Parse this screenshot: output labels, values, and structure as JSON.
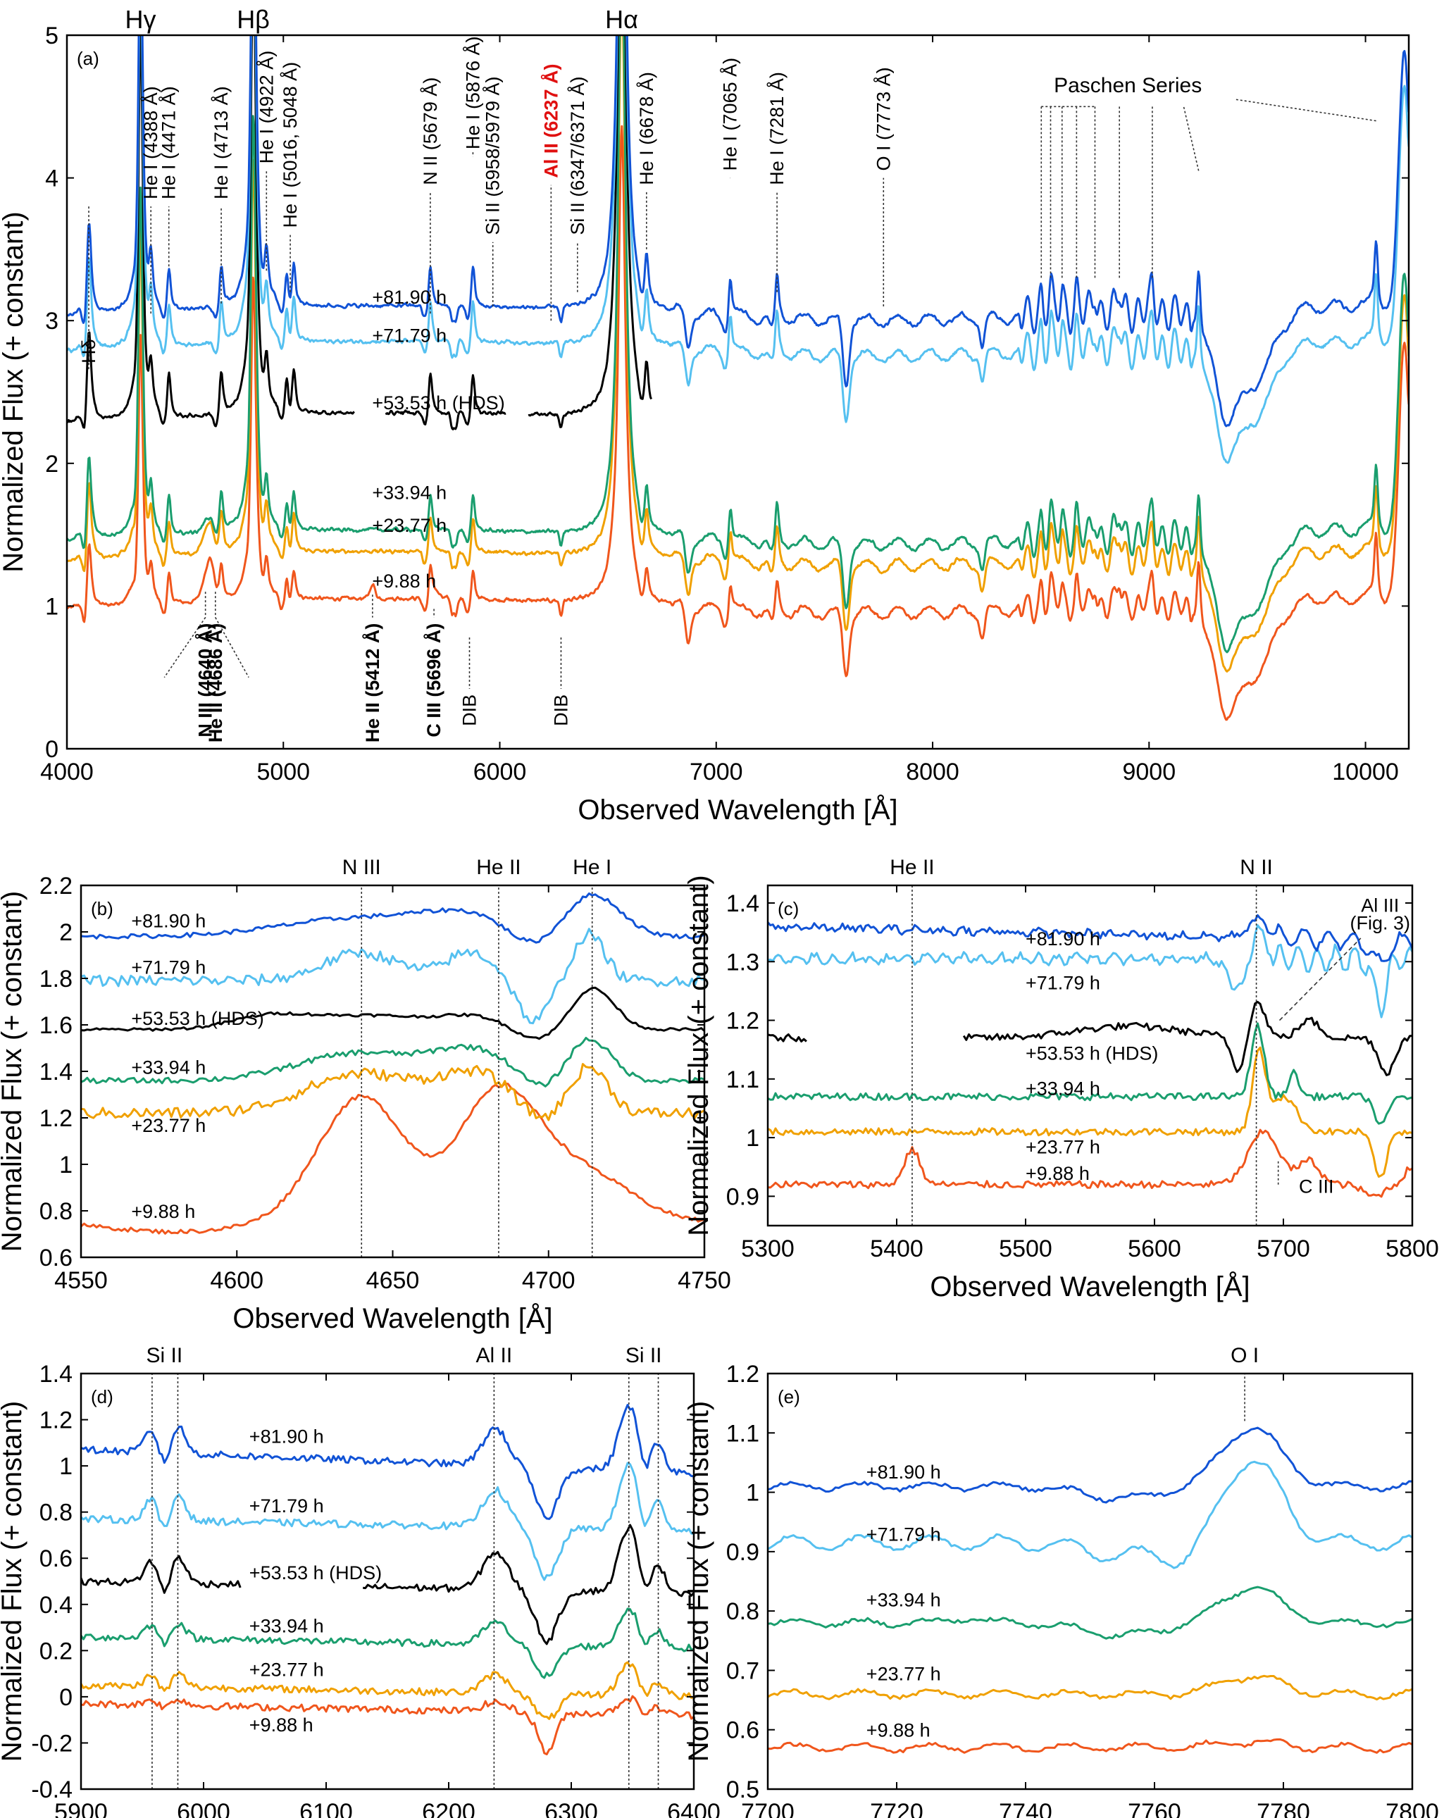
{
  "colors": {
    "+81.90 h": "#1153d6",
    "+71.79 h": "#55c0f0",
    "+53.53 h (HDS)": "#000000",
    "+33.94 h": "#1a9e6e",
    "+23.77 h": "#f0a000",
    "+9.88 h": "#f0561c"
  },
  "chart_data": [
    {
      "panel": "a",
      "type": "line",
      "panel_label": "(a)",
      "xlabel": "Observed Wavelength [Å]",
      "ylabel": "Normalized Flux (+ constant)",
      "xlim": [
        4000,
        10200
      ],
      "ylim": [
        0,
        5
      ],
      "xticks": [
        4000,
        5000,
        6000,
        7000,
        8000,
        9000,
        10000
      ],
      "yticks": [
        0,
        1,
        2,
        3,
        4,
        5
      ],
      "balmer": [
        {
          "text": "Hγ",
          "x": 4340
        },
        {
          "text": "Hβ",
          "x": 4861
        },
        {
          "text": "Hα",
          "x": 6563
        }
      ],
      "top_lines": [
        {
          "text": "Hδ",
          "x": 4101,
          "y": 3.8,
          "ly": 2.7,
          "bold": false,
          "red": false
        },
        {
          "text": "He I (4388 Å)",
          "x": 4388,
          "y": 3.05,
          "ly": 3.85,
          "bold": false,
          "red": false
        },
        {
          "text": "He I (4471 Å)",
          "x": 4471,
          "y": 3.38,
          "ly": 3.85,
          "bold": false,
          "red": false
        },
        {
          "text": "He I (4713 Å)",
          "x": 4713,
          "y": 3.12,
          "ly": 3.85,
          "bold": false,
          "red": false
        },
        {
          "text": "He I (4922 Å)",
          "x": 4922,
          "y": 3.35,
          "ly": 4.1,
          "bold": false,
          "red": false
        },
        {
          "text": "He I (5016, 5048 Å)",
          "x": 5032,
          "y": 3.2,
          "ly": 3.65,
          "bold": false,
          "red": false
        },
        {
          "text": "N II (5679 Å)",
          "x": 5679,
          "y": 3.05,
          "ly": 3.95,
          "bold": false,
          "red": false
        },
        {
          "text": "He I (5876 Å)",
          "x": 5876,
          "y": 4.18,
          "ly": 4.2,
          "bold": false,
          "red": false
        },
        {
          "text": "Si II (5958/5979 Å)",
          "x": 5968,
          "y": 3.1,
          "ly": 3.6,
          "bold": false,
          "red": false
        },
        {
          "text": "Al II (6237 Å)",
          "x": 6237,
          "y": 3.0,
          "ly": 4.0,
          "bold": true,
          "red": true
        },
        {
          "text": "Si II (6347/6371 Å)",
          "x": 6359,
          "y": 3.2,
          "ly": 3.6,
          "bold": false,
          "red": false
        },
        {
          "text": "He I (6678 Å)",
          "x": 6678,
          "y": 3.5,
          "ly": 3.95,
          "bold": false,
          "red": false
        },
        {
          "text": "He I (7065 Å)",
          "x": 7065,
          "y": 4.0,
          "ly": 4.05,
          "bold": false,
          "red": false
        },
        {
          "text": "He I (7281 Å)",
          "x": 7281,
          "y": 3.2,
          "ly": 3.95,
          "bold": false,
          "red": false
        },
        {
          "text": "O I (7773 Å)",
          "x": 7773,
          "y": 3.1,
          "ly": 4.05,
          "bold": false,
          "red": false
        }
      ],
      "bottom_lines": [
        {
          "text": "N III (4640 Å)",
          "x": 4640,
          "y": 1.1,
          "ly": 0.92,
          "bold": true
        },
        {
          "text": "He II (4686 Å)",
          "x": 4686,
          "y": 1.1,
          "ly": 0.92,
          "bold": true
        },
        {
          "text": "He II (5412 Å)",
          "x": 5412,
          "y": 1.08,
          "ly": 0.92,
          "bold": true
        },
        {
          "text": "C III (5696 Å)",
          "x": 5696,
          "y": 0.98,
          "ly": 0.92,
          "bold": true
        },
        {
          "text": "DIB",
          "x": 5860,
          "y": 0.78,
          "ly": 0.42,
          "bold": false
        },
        {
          "text": "DIB",
          "x": 6283,
          "y": 0.78,
          "ly": 0.42,
          "bold": false
        }
      ],
      "paschen": {
        "text": "Paschen Series",
        "lines": [
          8502,
          8545,
          8598,
          8665,
          8750,
          8863,
          9015,
          9229,
          10049
        ],
        "label_x": 9300,
        "label_y": 4.6,
        "top_y": 4.5
      },
      "series": [
        {
          "name": "+81.90 h",
          "offset": 2.05,
          "xrange": [
            4000,
            10200
          ],
          "label_x": 5150,
          "label_y": 3.12
        },
        {
          "name": "+71.79 h",
          "offset": 1.8,
          "xrange": [
            4000,
            10200
          ],
          "label_x": 5150,
          "label_y": 2.85
        },
        {
          "name": "+53.53 h (HDS)",
          "offset": 1.3,
          "xrange": [
            4000,
            6700
          ],
          "gaps": [
            [
              5330,
              5470
            ],
            [
              6030,
              6130
            ]
          ],
          "label_x": 5150,
          "label_y": 2.38
        },
        {
          "name": "+33.94 h",
          "offset": 0.48,
          "xrange": [
            4000,
            10200
          ],
          "label_x": 5150,
          "label_y": 1.75
        },
        {
          "name": "+23.77 h",
          "offset": 0.33,
          "xrange": [
            4000,
            10200
          ],
          "label_x": 5150,
          "label_y": 1.52
        },
        {
          "name": "+9.88 h",
          "offset": 0,
          "xrange": [
            4000,
            10200
          ],
          "label_x": 5150,
          "label_y": 1.13
        }
      ],
      "balmer_widths": [
        {
          "x": 4101,
          "a": 0.75,
          "w": 12
        },
        {
          "x": 4340,
          "a": 3.0,
          "w": 12
        },
        {
          "x": 4861,
          "a": 3.5,
          "w": 14
        },
        {
          "x": 6563,
          "a": 5.0,
          "w": 20
        }
      ],
      "he_lines": [
        4388,
        4471,
        4713,
        4922,
        5016,
        5048,
        5876,
        6678,
        7065,
        7281,
        5679
      ],
      "dibs": [
        5780,
        5797,
        6283
      ],
      "telluric": [
        {
          "x": 7600,
          "d": 0.45,
          "w": 14
        },
        {
          "x": 6870,
          "d": 0.25,
          "w": 12
        },
        {
          "x": 8230,
          "d": 0.2,
          "w": 10
        },
        {
          "x": 9400,
          "d": 0.3,
          "w": 90
        },
        {
          "x": 9350,
          "d": 0.2,
          "w": 30
        }
      ]
    },
    {
      "panel": "b",
      "type": "line",
      "panel_label": "(b)",
      "xlabel": "Observed Wavelength [Å]",
      "ylabel": "Normalized Flux (+ constant)",
      "xlim": [
        4550,
        4750
      ],
      "ylim": [
        0.6,
        2.2
      ],
      "xticks": [
        4550,
        4600,
        4650,
        4700,
        4750
      ],
      "yticks": [
        0.6,
        0.8,
        1,
        1.2,
        1.4,
        1.6,
        1.8,
        2,
        2.2
      ],
      "vlines": [
        {
          "text": "N III",
          "x": 4640
        },
        {
          "text": "He II",
          "x": 4684
        },
        {
          "text": "He I",
          "x": 4714
        }
      ],
      "series": [
        {
          "name": "+81.90 h",
          "base": 1.98,
          "label_x": 4565,
          "label_y": 2.05,
          "noise": 0.003
        },
        {
          "name": "+71.79 h",
          "base": 1.79,
          "label_x": 4565,
          "label_y": 1.85,
          "noise": 0.008
        },
        {
          "name": "+53.53 h (HDS)",
          "base": 1.58,
          "label_x": 4565,
          "label_y": 1.63,
          "noise": 0.002
        },
        {
          "name": "+33.94 h",
          "base": 1.36,
          "label_x": 4565,
          "label_y": 1.42,
          "noise": 0.004
        },
        {
          "name": "+23.77 h",
          "base": 1.22,
          "label_x": 4565,
          "label_y": 1.17,
          "noise": 0.008
        },
        {
          "name": "+9.88 h",
          "base": 0.75,
          "label_x": 4565,
          "label_y": 0.8,
          "noise": 0.003
        }
      ]
    },
    {
      "panel": "c",
      "type": "line",
      "panel_label": "(c)",
      "xlabel": "Observed Wavelength [Å]",
      "ylabel": "Normalized Flux (+ constant)",
      "xlim": [
        5300,
        5800
      ],
      "ylim": [
        0.85,
        1.43
      ],
      "xticks": [
        5300,
        5400,
        5500,
        5600,
        5700,
        5800
      ],
      "yticks": [
        0.9,
        1,
        1.1,
        1.2,
        1.3,
        1.4
      ],
      "vlines": [
        {
          "text": "He II",
          "x": 5412
        },
        {
          "text": "N II",
          "x": 5679
        }
      ],
      "annotations": [
        {
          "text": "Al III",
          "x": 5775,
          "y": 1.385
        },
        {
          "text": "(Fig. 3)",
          "x": 5775,
          "y": 1.355
        },
        {
          "text": "C III",
          "x": 5712,
          "y": 0.906
        }
      ],
      "series": [
        {
          "name": "+81.90 h",
          "base": 1.36,
          "label_x": 5500,
          "label_y": 1.34
        },
        {
          "name": "+71.79 h",
          "base": 1.305,
          "label_x": 5500,
          "label_y": 1.265
        },
        {
          "name": "+53.53 h (HDS)",
          "base": 1.17,
          "label_x": 5500,
          "label_y": 1.145
        },
        {
          "name": "+33.94 h",
          "base": 1.07,
          "label_x": 5500,
          "label_y": 1.085
        },
        {
          "name": "+23.77 h",
          "base": 1.01,
          "label_x": 5500,
          "label_y": 0.985
        },
        {
          "name": "+9.88 h",
          "base": 0.92,
          "label_x": 5500,
          "label_y": 0.94
        }
      ]
    },
    {
      "panel": "d",
      "type": "line",
      "panel_label": "(d)",
      "xlabel": "Observed Wavelength [Å]",
      "ylabel": "Normalized Flux (+ constant)",
      "xlim": [
        5900,
        6400
      ],
      "ylim": [
        -0.4,
        1.4
      ],
      "xticks": [
        5900,
        6000,
        6100,
        6200,
        6300,
        6400
      ],
      "yticks": [
        -0.4,
        -0.2,
        0,
        0.2,
        0.4,
        0.6,
        0.8,
        1,
        1.2,
        1.4
      ],
      "vlines": [
        {
          "text": "Si II",
          "x": 5958
        },
        {
          "text": "",
          "x": 5979
        },
        {
          "text": "Al II",
          "x": 6237
        },
        {
          "text": "Si II",
          "x": 6347
        },
        {
          "text": "",
          "x": 6371
        }
      ],
      "ion_labels": [
        {
          "text": "Si II",
          "x": 5968
        },
        {
          "text": "Al II",
          "x": 6237
        },
        {
          "text": "Si II",
          "x": 6359
        }
      ],
      "series": [
        {
          "name": "+81.90 h",
          "base": 1.07,
          "label_x": 6020,
          "label_y": 1.13
        },
        {
          "name": "+71.79 h",
          "base": 0.77,
          "label_x": 6020,
          "label_y": 0.83
        },
        {
          "name": "+53.53 h (HDS)",
          "base": 0.5,
          "label_x": 6020,
          "label_y": 0.54
        },
        {
          "name": "+33.94 h",
          "base": 0.26,
          "label_x": 6020,
          "label_y": 0.31
        },
        {
          "name": "+23.77 h",
          "base": 0.05,
          "label_x": 6020,
          "label_y": 0.12
        },
        {
          "name": "+9.88 h",
          "base": -0.03,
          "label_x": 6020,
          "label_y": -0.12
        }
      ]
    },
    {
      "panel": "e",
      "type": "line",
      "panel_label": "(e)",
      "xlabel": "Observed Wavelength [Å]",
      "ylabel": "Normalized Flux (+ constant)",
      "xlim": [
        7700,
        7800
      ],
      "ylim": [
        0.5,
        1.2
      ],
      "xticks": [
        7700,
        7720,
        7740,
        7760,
        7780,
        7800
      ],
      "yticks": [
        0.5,
        0.6,
        0.7,
        0.8,
        0.9,
        1,
        1.1,
        1.2
      ],
      "vlines": [
        {
          "text": "O I",
          "x": 7774
        }
      ],
      "series": [
        {
          "name": "+81.90 h",
          "base": 1.01,
          "label_x": 7712,
          "label_y": 1.035,
          "amp": 0.1
        },
        {
          "name": "+71.79 h",
          "base": 0.915,
          "label_x": 7712,
          "label_y": 0.93,
          "amp": 0.14
        },
        {
          "name": "+33.94 h",
          "base": 0.78,
          "label_x": 7712,
          "label_y": 0.82,
          "amp": 0.06
        },
        {
          "name": "+23.77 h",
          "base": 0.66,
          "label_x": 7712,
          "label_y": 0.695,
          "amp": 0.03
        },
        {
          "name": "+9.88 h",
          "base": 0.57,
          "label_x": 7712,
          "label_y": 0.6,
          "amp": 0.01
        }
      ]
    }
  ]
}
